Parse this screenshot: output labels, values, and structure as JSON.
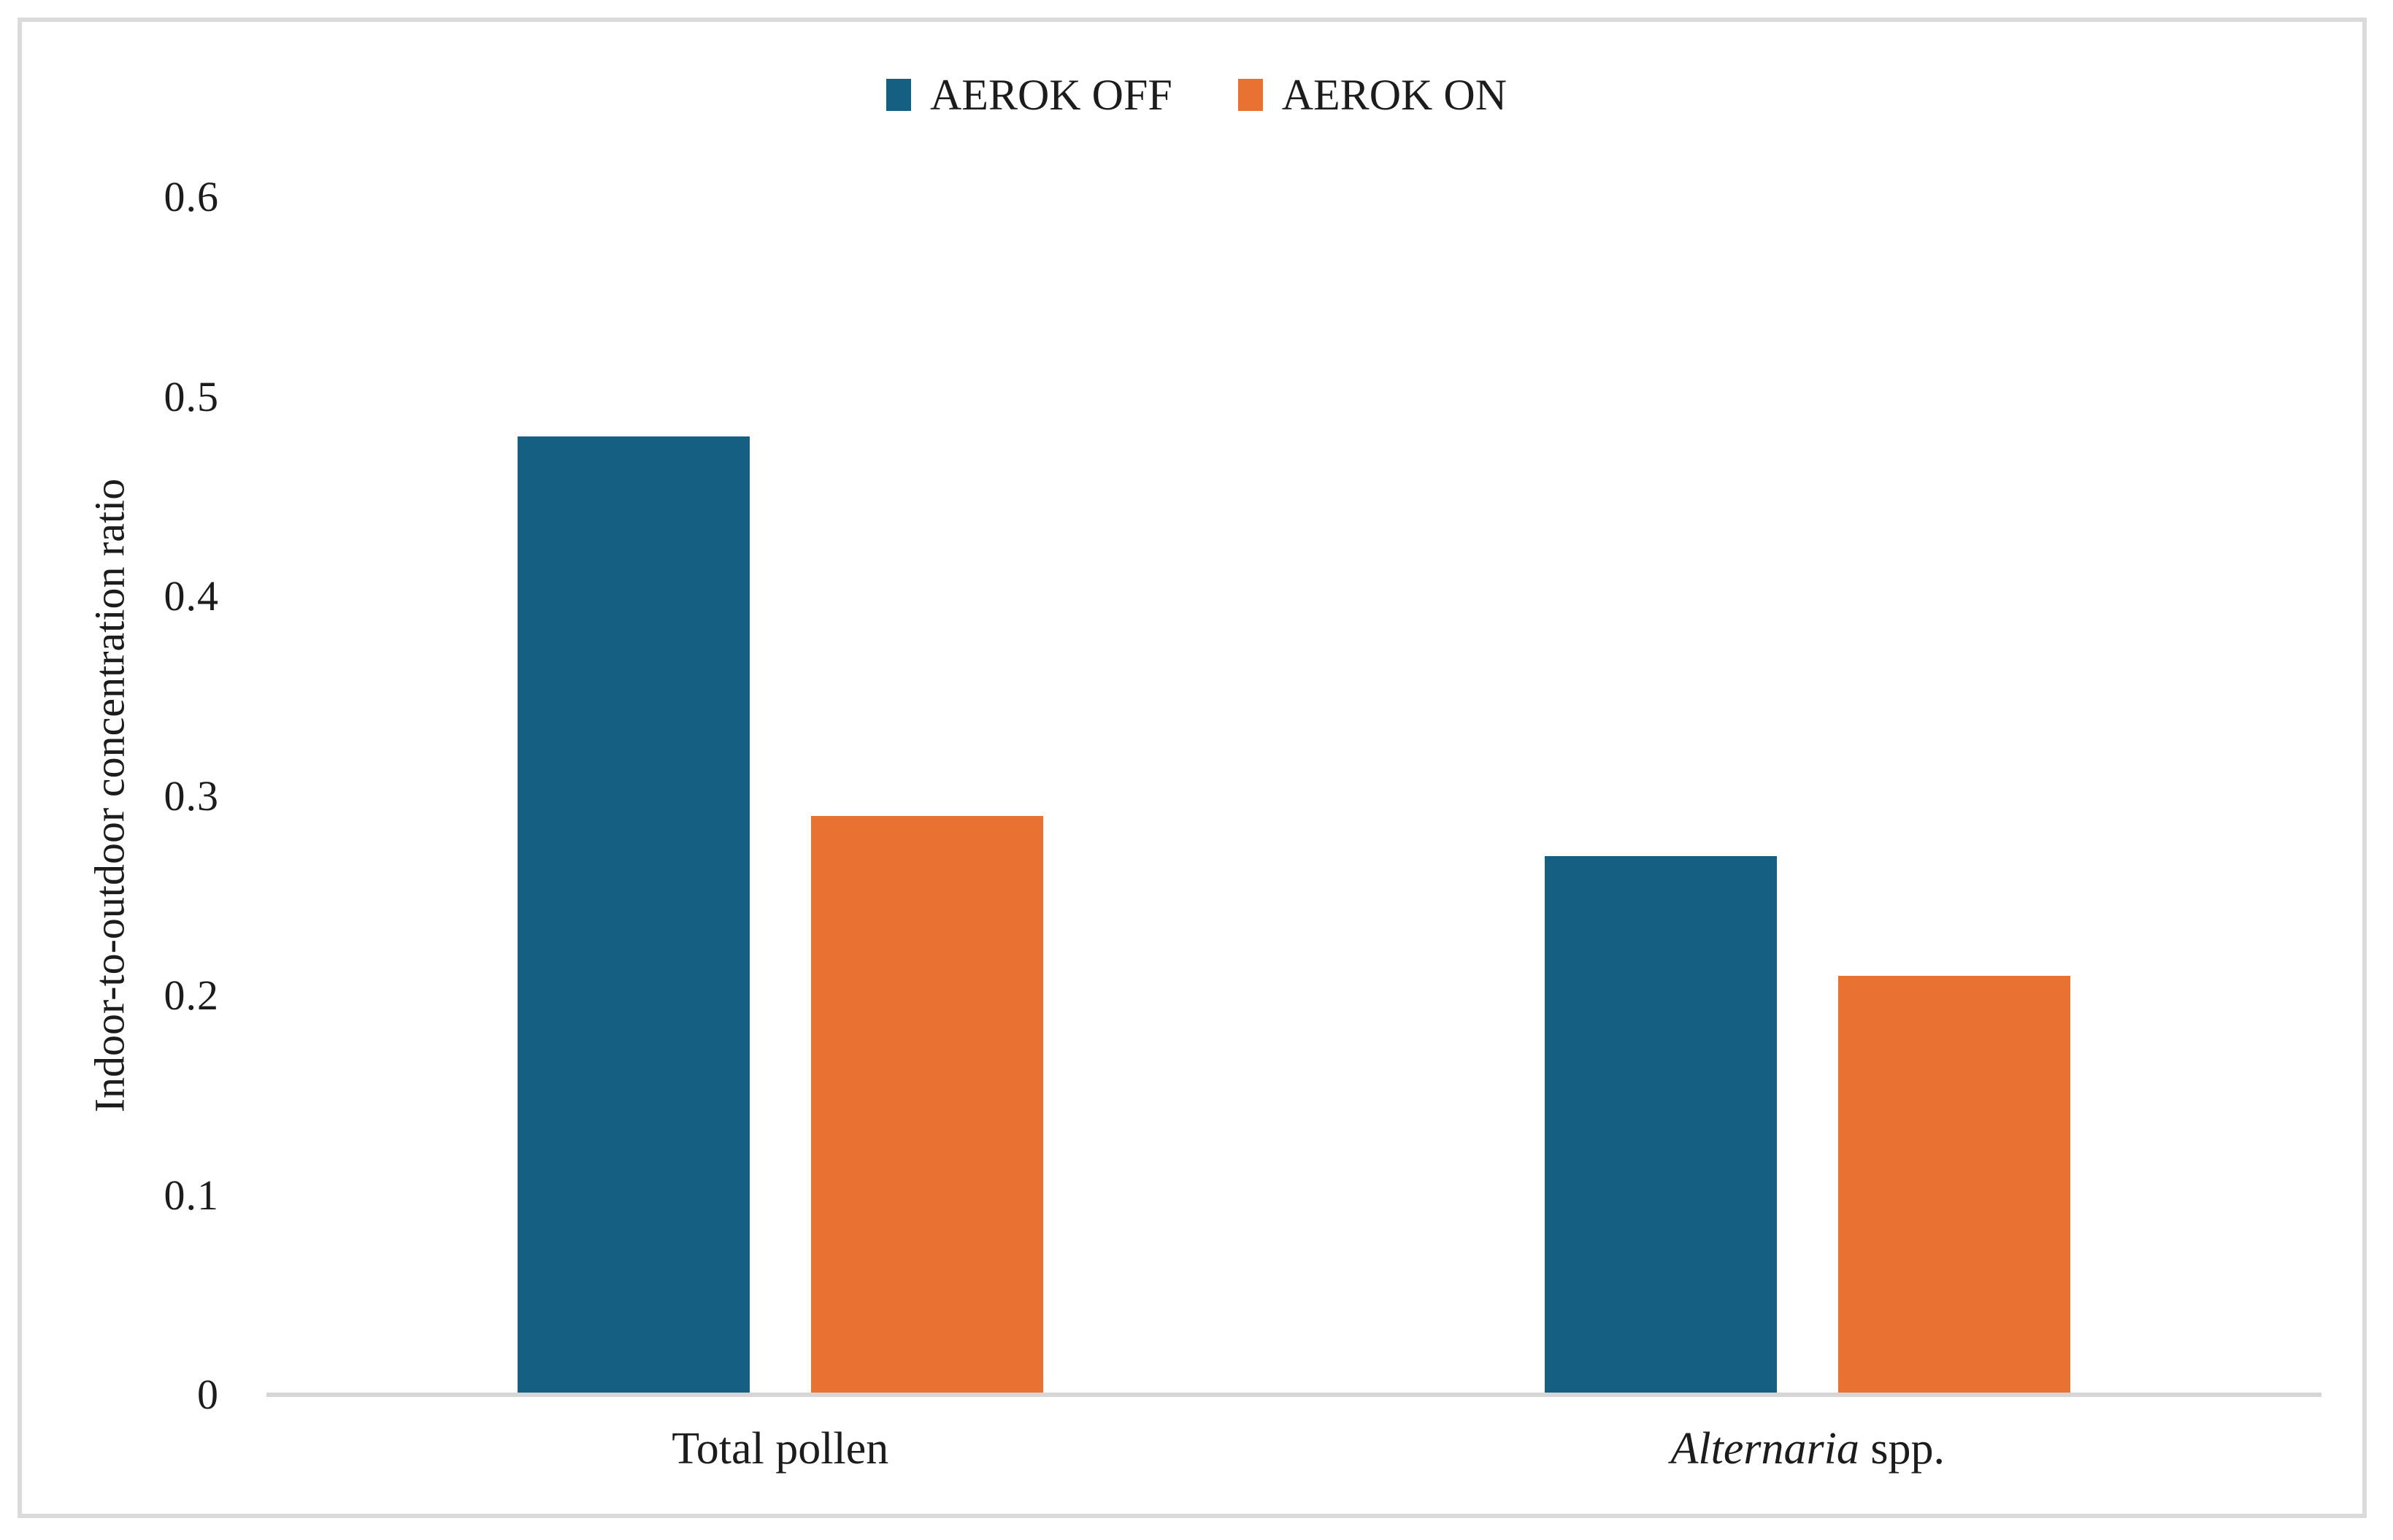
{
  "chart_data": {
    "type": "bar",
    "title": "",
    "xlabel": "",
    "ylabel": "Indoor-to-outdoor concentration ratio",
    "ylim": [
      0,
      0.6
    ],
    "yticks": [
      0,
      0.1,
      0.2,
      0.3,
      0.4,
      0.5,
      0.6
    ],
    "ytick_labels": [
      "0",
      "0.1",
      "0.2",
      "0.3",
      "0.4",
      "0.5",
      "0.6"
    ],
    "grid": "off",
    "legend_position": "top-center",
    "categories": [
      "Total pollen",
      "Alternaria spp."
    ],
    "categories_format": [
      {
        "italic": "",
        "regular": "Total pollen"
      },
      {
        "italic": "Alternaria",
        "regular": " spp."
      }
    ],
    "series": [
      {
        "name": "AEROK OFF",
        "color": "#156082",
        "values": [
          0.48,
          0.27
        ]
      },
      {
        "name": "AEROK ON",
        "color": "#E97132",
        "values": [
          0.29,
          0.21
        ]
      }
    ],
    "colors": {
      "axis_line": "#D6D6D6",
      "frame_border": "#DBDBDB",
      "text": "#1C1C1C",
      "background": "#FFFFFF"
    }
  }
}
